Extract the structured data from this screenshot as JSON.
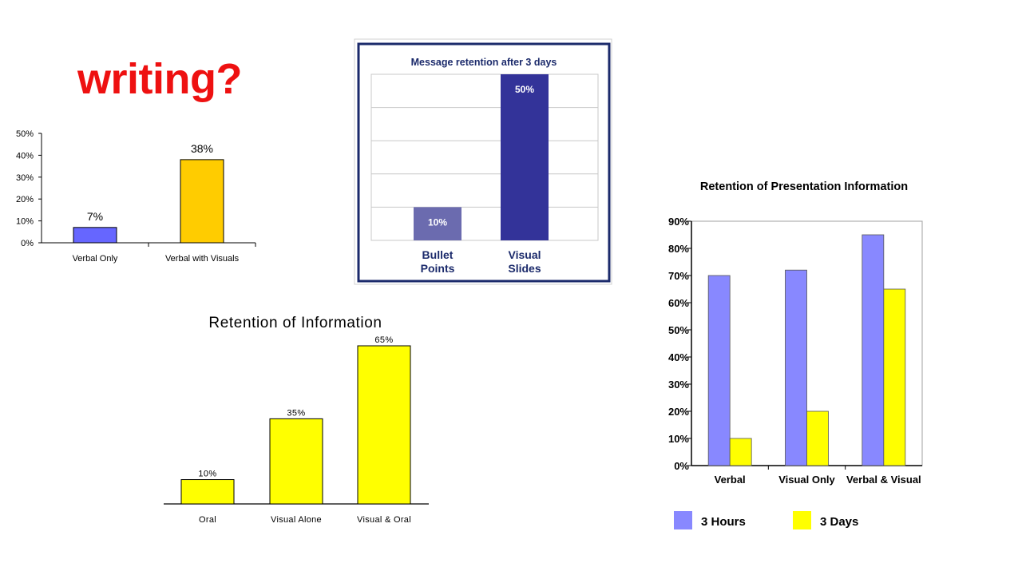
{
  "slide": {
    "title": "writing?",
    "title_color": "#ee1111"
  },
  "chart_data": [
    {
      "id": "chart1",
      "type": "bar",
      "title": "",
      "categories": [
        "Verbal Only",
        "Verbal with Visuals"
      ],
      "values": [
        7,
        38
      ],
      "value_labels": [
        "7%",
        "38%"
      ],
      "bar_colors": [
        "#6666ff",
        "#ffcc00"
      ],
      "ylim": [
        0,
        50
      ],
      "yticks": [
        "0%",
        "10%",
        "20%",
        "30%",
        "40%",
        "50%"
      ],
      "grid": false
    },
    {
      "id": "chart2",
      "type": "bar",
      "title": "Message retention after 3 days",
      "categories": [
        "Bullet Points",
        "Visual Slides"
      ],
      "category_lines": [
        [
          "Bullet",
          "Points"
        ],
        [
          "Visual",
          "Slides"
        ]
      ],
      "values": [
        10,
        50
      ],
      "value_labels": [
        "10%",
        "50%"
      ],
      "bar_colors": [
        "#6b6baf",
        "#333399"
      ],
      "frame_color": "#1b2a6b",
      "ylim": [
        0,
        50
      ],
      "grid": true
    },
    {
      "id": "chart3",
      "type": "bar",
      "title": "Retention of Information",
      "categories": [
        "Oral",
        "Visual Alone",
        "Visual & Oral"
      ],
      "values": [
        10,
        35,
        65
      ],
      "value_labels": [
        "10%",
        "35%",
        "65%"
      ],
      "bar_color": "#ffff00",
      "ylim": [
        0,
        65
      ],
      "grid": false
    },
    {
      "id": "chart4",
      "type": "bar",
      "title": "Retention of Presentation Information",
      "categories": [
        "Verbal",
        "Visual Only",
        "Verbal & Visual"
      ],
      "series": [
        {
          "name": "3 Hours",
          "values": [
            70,
            72,
            85
          ],
          "color": "#8888ff"
        },
        {
          "name": "3 Days",
          "values": [
            10,
            20,
            65
          ],
          "color": "#ffff00"
        }
      ],
      "ylim": [
        0,
        90
      ],
      "yticks": [
        "0%",
        "10%",
        "20%",
        "30%",
        "40%",
        "50%",
        "60%",
        "70%",
        "80%",
        "90%"
      ],
      "grid": false,
      "legend": "bottom"
    }
  ]
}
